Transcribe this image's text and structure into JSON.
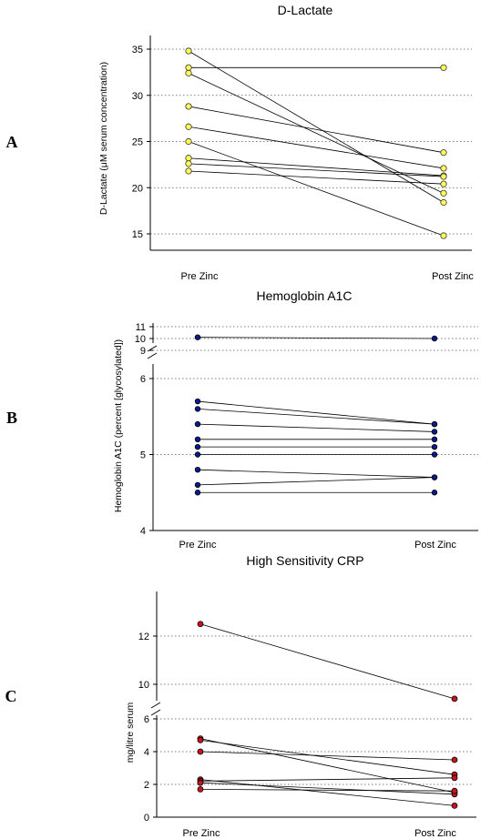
{
  "chart_data": [
    {
      "type": "line",
      "panel_label": "A",
      "title": "D-Lactate",
      "ylabel": "D-Lactate (μM serum concentration)",
      "categories": [
        "Pre Zinc",
        "Post Zinc"
      ],
      "yticks": [
        15,
        20,
        25,
        30,
        35
      ],
      "ylim": [
        13,
        36.5
      ],
      "grid": "y-dotted",
      "marker_color": "#ffff55",
      "pairs": [
        [
          34.8,
          18.4
        ],
        [
          33.0,
          33.0
        ],
        [
          32.4,
          19.4
        ],
        [
          28.8,
          23.8
        ],
        [
          26.6,
          22.1
        ],
        [
          25.0,
          14.8
        ],
        [
          23.2,
          21.3
        ],
        [
          22.6,
          21.2
        ],
        [
          21.8,
          20.4
        ]
      ]
    },
    {
      "type": "line",
      "panel_label": "B",
      "title": "Hemoglobin A1C",
      "ylabel": "Hemoglobin A1C (percent [glycosylated])",
      "categories": [
        "Pre Zinc",
        "Post Zinc"
      ],
      "yticks": [
        4,
        5,
        6,
        9,
        10,
        11
      ],
      "grid": "y-dotted",
      "broken_axis": [
        6,
        9
      ],
      "marker_color": "#0a1a8c",
      "pairs": [
        [
          10.1,
          10.0
        ],
        [
          5.7,
          5.4
        ],
        [
          5.6,
          5.4
        ],
        [
          5.4,
          5.3
        ],
        [
          5.2,
          5.2
        ],
        [
          5.1,
          5.1
        ],
        [
          5.0,
          5.0
        ],
        [
          4.8,
          4.7
        ],
        [
          4.6,
          4.7
        ],
        [
          4.5,
          4.5
        ]
      ]
    },
    {
      "type": "line",
      "panel_label": "C",
      "title": "High Sensitivity CRP",
      "ylabel": "mg/litre serum",
      "categories": [
        "Pre Zinc",
        "Post Zinc"
      ],
      "yticks": [
        0,
        2,
        4,
        6,
        10,
        12
      ],
      "grid": "y-dotted",
      "broken_axis": [
        6,
        9
      ],
      "marker_color": "#c8141e",
      "pairs": [
        [
          12.5,
          9.4
        ],
        [
          4.8,
          1.5
        ],
        [
          4.7,
          2.6
        ],
        [
          4.0,
          3.5
        ],
        [
          2.3,
          0.7
        ],
        [
          2.2,
          2.4
        ],
        [
          2.1,
          1.4
        ],
        [
          1.7,
          1.6
        ]
      ]
    }
  ]
}
